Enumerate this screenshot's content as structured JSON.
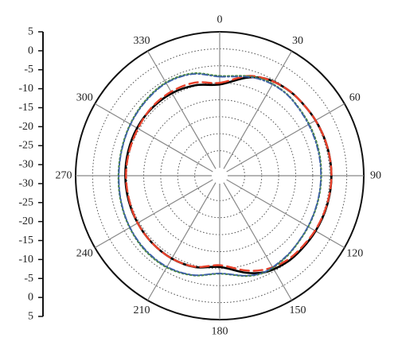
{
  "chart_data": {
    "type": "polar",
    "title": "",
    "radial_axis": {
      "range": [
        -35,
        5
      ],
      "side_scale_upper": [
        "5",
        "0",
        "-5",
        "-10",
        "-15",
        "-20",
        "-25",
        "-30"
      ],
      "side_scale_lower": [
        "-25",
        "-20",
        "-15",
        "-10",
        "-5",
        "0",
        "5"
      ],
      "center_label": "-30"
    },
    "angular_axis": {
      "direction": "clockwise",
      "zero_location": "top",
      "tick_labels": [
        "0",
        "30",
        "60",
        "90",
        "120",
        "150",
        "180",
        "210",
        "240",
        "270",
        "300",
        "330"
      ],
      "tick_values": [
        0,
        30,
        60,
        90,
        120,
        150,
        180,
        210,
        240,
        270,
        300,
        330
      ]
    },
    "grid": true,
    "series": [
      {
        "line_style": "solid",
        "color": "#000000",
        "theta": [
          0,
          15,
          25,
          35,
          45,
          60,
          75,
          90,
          105,
          120,
          135,
          145,
          155,
          165,
          180,
          195,
          210,
          225,
          240,
          255,
          270,
          285,
          300,
          315,
          330,
          345,
          360
        ],
        "r": [
          -10.5,
          -7.5,
          -5.8,
          -5.2,
          -5.0,
          -4.8,
          -4.6,
          -4.5,
          -4.6,
          -4.8,
          -5.0,
          -5.3,
          -6.0,
          -7.8,
          -10.5,
          -9.5,
          -9.2,
          -9.3,
          -9.5,
          -9.6,
          -9.6,
          -9.5,
          -9.3,
          -9.2,
          -9.3,
          -9.8,
          -10.5
        ]
      },
      {
        "line_style": "dashed",
        "color": "#e8402a",
        "theta": [
          0,
          15,
          25,
          35,
          45,
          60,
          75,
          90,
          105,
          120,
          135,
          145,
          155,
          165,
          180,
          195,
          210,
          225,
          240,
          255,
          270,
          285,
          300,
          315,
          330,
          345,
          360
        ],
        "r": [
          -10.0,
          -7.0,
          -5.8,
          -5.2,
          -5.0,
          -4.8,
          -4.6,
          -4.5,
          -4.7,
          -5.0,
          -5.4,
          -5.8,
          -6.8,
          -8.5,
          -11.0,
          -9.6,
          -9.2,
          -9.3,
          -9.5,
          -9.8,
          -9.8,
          -9.8,
          -9.6,
          -9.0,
          -8.8,
          -9.0,
          -10.0
        ]
      },
      {
        "line_style": "dotted",
        "color": "#4c8c3a",
        "theta": [
          0,
          15,
          25,
          35,
          45,
          60,
          75,
          90,
          105,
          120,
          135,
          145,
          155,
          165,
          180,
          195,
          210,
          225,
          240,
          255,
          270,
          285,
          300,
          315,
          330,
          345,
          360
        ],
        "r": [
          -8.0,
          -7.0,
          -6.3,
          -6.2,
          -6.5,
          -7.0,
          -7.3,
          -7.5,
          -7.5,
          -7.3,
          -6.8,
          -6.3,
          -6.0,
          -6.8,
          -8.5,
          -7.0,
          -6.2,
          -6.3,
          -6.8,
          -7.3,
          -7.6,
          -7.5,
          -7.0,
          -6.3,
          -5.7,
          -6.2,
          -8.0
        ]
      },
      {
        "line_style": "dash-dot",
        "color": "#3d5fa8",
        "theta": [
          0,
          15,
          25,
          35,
          45,
          60,
          75,
          90,
          105,
          120,
          135,
          145,
          155,
          165,
          180,
          195,
          210,
          225,
          240,
          255,
          270,
          285,
          300,
          315,
          330,
          345,
          360
        ],
        "r": [
          -8.2,
          -7.2,
          -6.5,
          -6.3,
          -6.6,
          -7.2,
          -7.5,
          -7.6,
          -7.6,
          -7.4,
          -6.9,
          -6.5,
          -6.1,
          -6.9,
          -8.6,
          -7.1,
          -6.4,
          -6.5,
          -6.9,
          -7.4,
          -7.7,
          -7.6,
          -7.1,
          -6.5,
          -5.9,
          -6.4,
          -8.2
        ]
      }
    ]
  }
}
